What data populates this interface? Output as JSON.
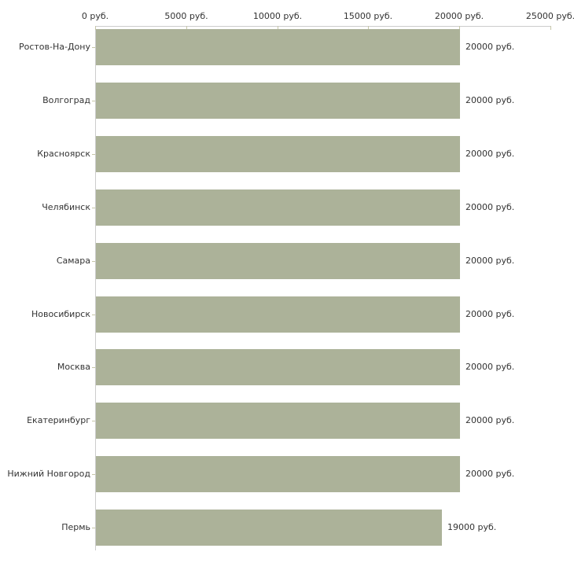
{
  "chart_data": {
    "type": "bar",
    "orientation": "horizontal",
    "categories": [
      "Ростов-На-Дону",
      "Волгоград",
      "Красноярск",
      "Челябинск",
      "Самара",
      "Новосибирск",
      "Москва",
      "Екатеринбург",
      "Нижний Новгород",
      "Пермь"
    ],
    "values": [
      20000,
      20000,
      20000,
      20000,
      20000,
      20000,
      20000,
      20000,
      20000,
      19000
    ],
    "value_labels": [
      "20000 руб.",
      "20000 руб.",
      "20000 руб.",
      "20000 руб.",
      "20000 руб.",
      "20000 руб.",
      "20000 руб.",
      "20000 руб.",
      "20000 руб.",
      "19000 руб."
    ],
    "x_axis": {
      "ticks": [
        0,
        5000,
        10000,
        15000,
        20000,
        25000
      ],
      "tick_labels": [
        "0 руб.",
        "5000 руб.",
        "10000 руб.",
        "15000 руб.",
        "20000 руб.",
        "25000 руб."
      ],
      "lim": [
        0,
        25000
      ],
      "position": "top"
    },
    "unit": "руб.",
    "grid": false,
    "colors": {
      "bar": "#acb299",
      "axis_line": "#cccccc",
      "tick_mark": "#c6c6a8",
      "text": "#333333",
      "background": "#ffffff"
    }
  }
}
